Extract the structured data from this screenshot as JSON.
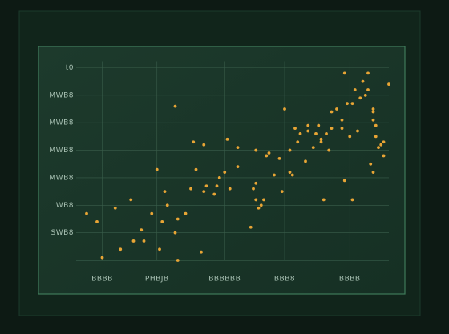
{
  "chart_data": {
    "type": "scatter",
    "color": "#e8a535",
    "grid": true,
    "xlim": [
      0,
      12
    ],
    "ylim": [
      0,
      7
    ],
    "xticks": [
      {
        "value": 1,
        "label": "BBBB"
      },
      {
        "value": 3.1,
        "label": "PHBJB"
      },
      {
        "value": 5.7,
        "label": "BBBBBB"
      },
      {
        "value": 8,
        "label": "BBB8"
      },
      {
        "value": 10.5,
        "label": "BBBB"
      }
    ],
    "yticks": [
      {
        "value": 1,
        "label": "SWB8"
      },
      {
        "value": 2,
        "label": "WB8"
      },
      {
        "value": 3,
        "label": "MWB8"
      },
      {
        "value": 4,
        "label": "MWB8"
      },
      {
        "value": 5,
        "label": "MWB8"
      },
      {
        "value": 6,
        "label": "MWB8"
      },
      {
        "value": 7,
        "label": "t0"
      }
    ],
    "x": [
      0.4,
      0.8,
      1.0,
      1.5,
      1.7,
      2.1,
      2.2,
      2.5,
      2.6,
      2.9,
      3.1,
      3.2,
      3.3,
      3.4,
      3.5,
      3.8,
      3.8,
      3.9,
      3.9,
      4.2,
      4.4,
      4.5,
      4.6,
      4.8,
      4.9,
      4.9,
      5.0,
      5.3,
      5.4,
      5.5,
      5.7,
      5.8,
      5.9,
      6.2,
      6.2,
      6.7,
      6.8,
      6.9,
      6.9,
      6.9,
      7.0,
      7.1,
      7.2,
      7.3,
      7.4,
      7.6,
      7.8,
      7.9,
      8.0,
      8.2,
      8.2,
      8.3,
      8.4,
      8.5,
      8.6,
      8.8,
      8.9,
      8.9,
      9.1,
      9.2,
      9.3,
      9.4,
      9.4,
      9.5,
      9.6,
      9.7,
      9.8,
      9.8,
      10.0,
      10.2,
      10.2,
      10.3,
      10.4,
      10.5,
      10.6,
      10.6,
      10.7,
      10.8,
      10.9,
      11.0,
      11.1,
      11.2,
      11.2,
      11.3,
      11.4,
      11.4,
      11.4,
      11.5,
      11.5,
      11.6,
      11.7,
      11.8,
      11.8,
      12.0,
      10.3,
      11.4
    ],
    "values": [
      1.7,
      1.4,
      0.1,
      1.9,
      0.4,
      2.2,
      0.7,
      1.1,
      0.7,
      1.7,
      3.3,
      0.4,
      1.4,
      2.5,
      2.0,
      1.0,
      5.6,
      1.5,
      0,
      1.7,
      2.6,
      4.3,
      3.3,
      0.3,
      4.2,
      2.5,
      2.7,
      2.4,
      2.7,
      3.0,
      3.2,
      4.4,
      2.6,
      4.1,
      3.4,
      1.2,
      2.6,
      2.8,
      2.2,
      4.0,
      1.9,
      2.0,
      2.2,
      3.8,
      3.9,
      3.1,
      3.7,
      2.5,
      5.5,
      3.2,
      4.0,
      3.1,
      4.8,
      4.3,
      4.6,
      3.6,
      4.9,
      4.7,
      4.1,
      4.6,
      4.9,
      4.4,
      4.3,
      2.2,
      4.6,
      4.0,
      4.8,
      5.4,
      5.5,
      5.1,
      4.8,
      2.9,
      5.7,
      4.5,
      2.2,
      5.7,
      6.2,
      4.7,
      5.9,
      6.5,
      6.0,
      6.8,
      6.2,
      3.5,
      5.1,
      5.4,
      3.2,
      4.9,
      4.5,
      4.1,
      4.2,
      4.3,
      3.8,
      6.4,
      6.8,
      5.5
    ]
  }
}
